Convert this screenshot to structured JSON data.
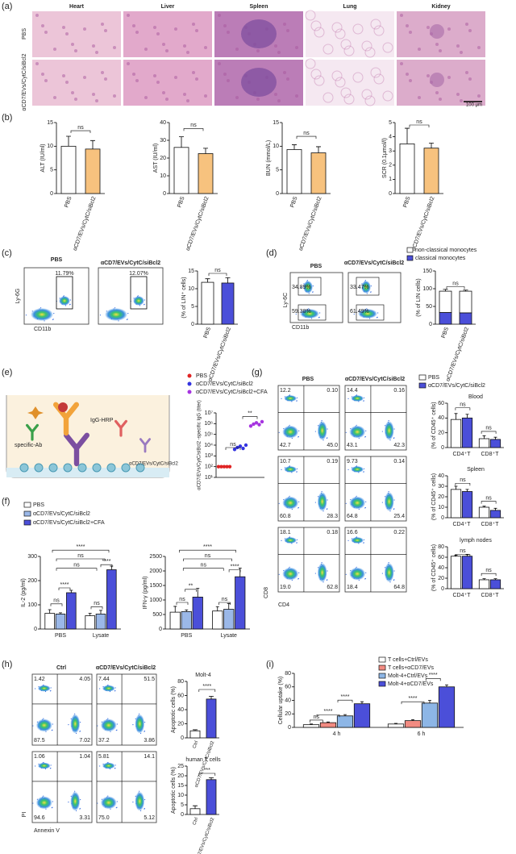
{
  "panel_labels": [
    "(a)",
    "(b)",
    "(c)",
    "(d)",
    "(e)",
    "(f)",
    "(g)",
    "(h)",
    "(i)"
  ],
  "histology": {
    "columns": [
      "Heart",
      "Liver",
      "Spleen",
      "Lung",
      "Kidney"
    ],
    "rows": [
      "PBS",
      "αCD7/EVs/CytC/siBcl2"
    ],
    "scale_bar": "100 μm"
  },
  "flow_c": {
    "titles": [
      "PBS",
      "αCD7/EVs/CytC/siBcl2"
    ],
    "gates": [
      "11.79%",
      "12.07%"
    ],
    "y_axis": "Ly-6G",
    "x_axis": "CD11b"
  },
  "flow_d": {
    "titles": [
      "PBS",
      "αCD7/EVs/CytC/siBcl2"
    ],
    "gates": [
      [
        "34.89%",
        "59.38%"
      ],
      [
        "33.47%",
        "61.49%"
      ]
    ],
    "y_axis": "Ly-6C",
    "x_axis": "CD11b"
  },
  "diagram_e": {
    "labels": [
      "IgG-HRP",
      "specific-Ab",
      "αCD7/EVs/CytC/siBcl2"
    ]
  },
  "flow_g": {
    "titles": [
      "PBS",
      "αCD7/EVs/CytC/siBcl2"
    ],
    "rows": [
      [
        [
          "12.2",
          "0.10",
          "42.7",
          "45.0"
        ],
        [
          "14.4",
          "0.16",
          "43.1",
          "42.3"
        ]
      ],
      [
        [
          "10.7",
          "0.19",
          "60.8",
          "28.3"
        ],
        [
          "9.73",
          "0.14",
          "64.8",
          "25.4"
        ]
      ],
      [
        [
          "18.1",
          "0.18",
          "19.0",
          "62.8"
        ],
        [
          "16.6",
          "0.22",
          "18.4",
          "64.8"
        ]
      ]
    ],
    "y_axis": "CD8",
    "x_axis": "CD4"
  },
  "flow_h": {
    "titles": [
      "Ctrl",
      "αCD7/EVs/CytC/siBcl2"
    ],
    "rows": [
      [
        [
          "1.42",
          "4.05",
          "87.5",
          "7.02"
        ],
        [
          "7.44",
          "51.5",
          "37.2",
          "3.86"
        ]
      ],
      [
        [
          "1.06",
          "1.04",
          "94.6",
          "3.31"
        ],
        [
          "5.81",
          "14.1",
          "75.0",
          "5.12"
        ]
      ]
    ],
    "y_axis": "PI",
    "x_axis": "Annexin V"
  },
  "chart_data": [
    {
      "type": "bar",
      "ylabel": "ALT (IU/ml)",
      "categories": [
        "PBS",
        "αCD7/EVs/CytC/siBcl2"
      ],
      "values": [
        10,
        9.4
      ],
      "errors": [
        2.1,
        1.8
      ],
      "colors": [
        "#ffffff",
        "#f7c27e"
      ],
      "ylim": [
        0,
        15
      ],
      "yticks": [
        0,
        5,
        10,
        15
      ],
      "annotations": [
        "ns"
      ]
    },
    {
      "type": "bar",
      "ylabel": "AST (IU/ml)",
      "categories": [
        "PBS",
        "αCD7/EVs/CytC/siBcl2"
      ],
      "values": [
        26,
        22.5
      ],
      "errors": [
        6,
        3
      ],
      "colors": [
        "#ffffff",
        "#f7c27e"
      ],
      "ylim": [
        0,
        40
      ],
      "yticks": [
        0,
        10,
        20,
        30,
        40
      ],
      "annotations": [
        "ns"
      ]
    },
    {
      "type": "bar",
      "ylabel": "BUN (mmol/L)",
      "categories": [
        "PBS",
        "αCD7/EVs/CytC/siBcl2"
      ],
      "values": [
        9.3,
        8.6
      ],
      "errors": [
        1,
        1.3
      ],
      "colors": [
        "#ffffff",
        "#f7c27e"
      ],
      "ylim": [
        0,
        15
      ],
      "yticks": [
        0,
        5,
        10,
        15
      ],
      "annotations": [
        "ns"
      ]
    },
    {
      "type": "bar",
      "ylabel": "SCR (0.1μmol/l)",
      "categories": [
        "PBS",
        "αCD7/EVs/CytC/siBcl2"
      ],
      "values": [
        3.5,
        3.2
      ],
      "errors": [
        1.1,
        0.35
      ],
      "colors": [
        "#ffffff",
        "#f7c27e"
      ],
      "ylim": [
        0,
        5
      ],
      "yticks": [
        0,
        1,
        2,
        3,
        4,
        5
      ],
      "annotations": [
        "ns"
      ]
    },
    {
      "type": "bar",
      "ylabel": "(% of LIN⁺ cells)",
      "categories": [
        "PBS",
        "αCD7/EVs/CytC/siBcl2"
      ],
      "values": [
        11.8,
        11.6
      ],
      "errors": [
        1,
        1.5
      ],
      "colors": [
        "#ffffff",
        "#4b4fd9"
      ],
      "ylim": [
        0,
        15
      ],
      "yticks": [
        0,
        5,
        10,
        15
      ],
      "annotations": [
        "ns"
      ]
    },
    {
      "type": "stacked_bar",
      "ylabel": "(% of LIN cells)",
      "categories": [
        "PBS",
        "αCD7/EVs/CytC/siBcl2"
      ],
      "series": [
        {
          "name": "classical monocytes",
          "color": "#4b4fd9",
          "values": [
            33,
            32
          ],
          "errors": [
            4,
            2
          ]
        },
        {
          "name": "non-classical monocytes",
          "color": "#ffffff",
          "values": [
            60,
            61
          ],
          "errors": [
            5,
            3
          ]
        }
      ],
      "ylim": [
        0,
        150
      ],
      "yticks": [
        0,
        50,
        100,
        150
      ],
      "annotations": [
        "ns"
      ]
    },
    {
      "type": "scatter",
      "log": true,
      "ylabel": "αCD7/EVs/CytC/siBcl2 -specific IgG (titer)",
      "series": [
        {
          "name": "PBS",
          "color": "#e02424",
          "values": [
            100,
            100,
            100,
            100,
            100
          ]
        },
        {
          "name": "αCD7/EVs/CytC/siBcl2",
          "color": "#3434e0",
          "values": [
            4000,
            6000,
            8000,
            5000,
            10000
          ]
        },
        {
          "name": "αCD7/EVs/CytC/siBcl2+CFA",
          "color": "#a634e0",
          "values": [
            600000,
            900000,
            1200000,
            800000,
            1500000
          ]
        }
      ],
      "ylim": [
        10,
        10000000
      ],
      "yticks": [
        {
          "value": 10,
          "label": "10¹"
        },
        {
          "value": 100,
          "label": "10²"
        },
        {
          "value": 1000,
          "label": "10³"
        },
        {
          "value": 10000,
          "label": "10⁴"
        },
        {
          "value": 100000,
          "label": "10⁵"
        },
        {
          "value": 1000000,
          "label": "10⁶"
        },
        {
          "value": 10000000,
          "label": "10⁷"
        }
      ],
      "annotations": [
        "ns",
        "**"
      ]
    },
    {
      "type": "grouped_bar",
      "ylabel": "IL-2 (pg/ml)",
      "categories": [
        "PBS",
        "Lysate"
      ],
      "series": [
        {
          "name": "PBS",
          "color": "#ffffff",
          "values": [
            65,
            55
          ],
          "errors": [
            15,
            10
          ]
        },
        {
          "name": "αCD7/EVs/CytC/siBcl2",
          "color": "#9bb8e8",
          "values": [
            62,
            62
          ],
          "errors": [
            5,
            15
          ]
        },
        {
          "name": "αCD7/EVs/CytC/siBcl2+CFA",
          "color": "#4b4fd9",
          "values": [
            150,
            245
          ],
          "errors": [
            10,
            15
          ]
        }
      ],
      "ylim": [
        0,
        300
      ],
      "yticks": [
        0,
        100,
        200,
        300
      ],
      "annotations": [
        "****",
        "ns",
        "ns",
        "ns",
        "****",
        "ns",
        "****"
      ]
    },
    {
      "type": "grouped_bar",
      "ylabel": "IFN-γ (pg/ml)",
      "categories": [
        "PBS",
        "Lysate"
      ],
      "series": [
        {
          "name": "PBS",
          "color": "#ffffff",
          "values": [
            580,
            620
          ],
          "errors": [
            200,
            150
          ]
        },
        {
          "name": "αCD7/EVs/CytC/siBcl2",
          "color": "#9bb8e8",
          "values": [
            600,
            680
          ],
          "errors": [
            60,
            200
          ]
        },
        {
          "name": "αCD7/EVs/CytC/siBcl2+CFA",
          "color": "#4b4fd9",
          "values": [
            1100,
            1800
          ],
          "errors": [
            300,
            300
          ]
        }
      ],
      "ylim": [
        0,
        2500
      ],
      "yticks": [
        0,
        500,
        1000,
        1500,
        2000,
        2500
      ],
      "annotations": [
        "****",
        "ns",
        "ns",
        "ns",
        "**",
        "ns",
        "****"
      ]
    },
    {
      "type": "grouped_bar",
      "title": "Blood",
      "ylabel": "(% of CD45⁺ cells)",
      "categories": [
        "CD4⁺T",
        "CD8⁺T"
      ],
      "series": [
        {
          "name": "PBS",
          "color": "#ffffff",
          "values": [
            38,
            12
          ],
          "errors": [
            8,
            4
          ]
        },
        {
          "name": "αCD7/EVs/CytC/siBcl2",
          "color": "#4b4fd9",
          "values": [
            40,
            11
          ],
          "errors": [
            5,
            3
          ]
        }
      ],
      "ylim": [
        0,
        60
      ],
      "yticks": [
        0,
        20,
        40,
        60
      ],
      "annotations": [
        "ns",
        "ns"
      ]
    },
    {
      "type": "grouped_bar",
      "title": "Spleen",
      "ylabel": "(% of CD45⁺ cells)",
      "categories": [
        "CD4⁺T",
        "CD8⁺T"
      ],
      "series": [
        {
          "name": "PBS",
          "color": "#ffffff",
          "values": [
            27,
            10
          ],
          "errors": [
            3,
            1
          ]
        },
        {
          "name": "αCD7/EVs/CytC/siBcl2",
          "color": "#4b4fd9",
          "values": [
            25,
            7
          ],
          "errors": [
            2,
            2
          ]
        }
      ],
      "ylim": [
        0,
        40
      ],
      "yticks": [
        0,
        10,
        20,
        30,
        40
      ],
      "annotations": [
        "ns",
        "ns"
      ]
    },
    {
      "type": "grouped_bar",
      "title": "lymph nodes",
      "ylabel": "(% of CD45⁺ cells)",
      "categories": [
        "CD4⁺T",
        "CD8⁺T"
      ],
      "series": [
        {
          "name": "PBS",
          "color": "#ffffff",
          "values": [
            62,
            17
          ],
          "errors": [
            2,
            2
          ]
        },
        {
          "name": "αCD7/EVs/CytC/siBcl2",
          "color": "#4b4fd9",
          "values": [
            62,
            17
          ],
          "errors": [
            3,
            2
          ]
        }
      ],
      "ylim": [
        0,
        80
      ],
      "yticks": [
        0,
        20,
        40,
        60,
        80
      ],
      "annotations": [
        "ns",
        "ns"
      ]
    },
    {
      "type": "bar",
      "title": "Molt-4",
      "ylabel": "Apoptotic cells (%)",
      "categories": [
        "Ctrl",
        "αCD7/EVs/CytC/siBcl2"
      ],
      "values": [
        10,
        55
      ],
      "errors": [
        1.5,
        4
      ],
      "colors": [
        "#ffffff",
        "#4b4fd9"
      ],
      "ylim": [
        0,
        80
      ],
      "yticks": [
        0,
        20,
        40,
        60,
        80
      ],
      "annotations": [
        "****"
      ]
    },
    {
      "type": "bar",
      "title": "human T cells",
      "ylabel": "Apoptotic cells (%)",
      "categories": [
        "Ctrl",
        "αCD7/EVs/CytC/siBcl2"
      ],
      "values": [
        3,
        18
      ],
      "errors": [
        1.5,
        1
      ],
      "colors": [
        "#ffffff",
        "#4b4fd9"
      ],
      "ylim": [
        0,
        25
      ],
      "yticks": [
        0,
        5,
        10,
        15,
        20,
        25
      ],
      "annotations": [
        "***"
      ]
    },
    {
      "type": "grouped_bar",
      "ylabel": "Cellular uptake (%)",
      "categories": [
        "4 h",
        "6 h"
      ],
      "series": [
        {
          "name": "T cells+Ctrl/EVs",
          "color": "#ffffff",
          "values": [
            4,
            5
          ],
          "errors": [
            1,
            1
          ]
        },
        {
          "name": "T cells+αCD7/EVs",
          "color": "#f28b82",
          "values": [
            7,
            10
          ],
          "errors": [
            1,
            1.5
          ]
        },
        {
          "name": "Molt-4+Ctrl/EVs",
          "color": "#8db6e6",
          "values": [
            17,
            36
          ],
          "errors": [
            2,
            4
          ]
        },
        {
          "name": "Molt-4+αCD7/EVs",
          "color": "#4b4fd9",
          "values": [
            35,
            60
          ],
          "errors": [
            3,
            3
          ]
        }
      ],
      "ylim": [
        0,
        80
      ],
      "yticks": [
        0,
        20,
        40,
        60,
        80
      ],
      "annotations": [
        "ns",
        "****",
        "****",
        "****",
        "****"
      ]
    }
  ]
}
